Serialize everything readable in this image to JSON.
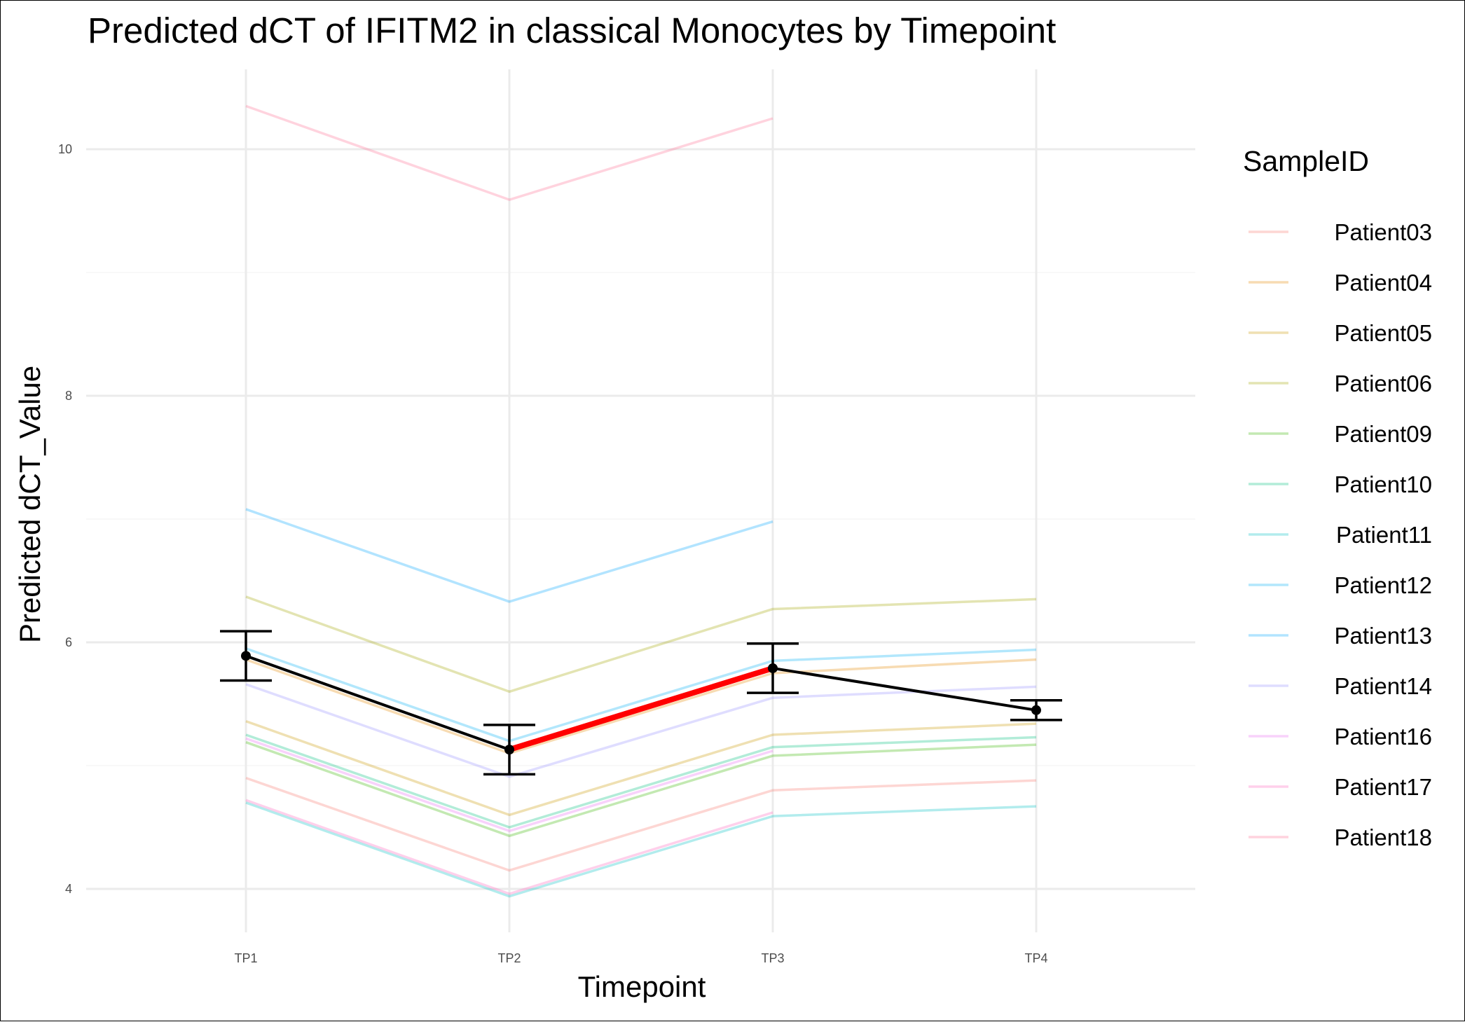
{
  "chart_data": {
    "type": "line",
    "title": "Predicted dCT of  IFITM2 in  classical  Monocytes by Timepoint",
    "xlabel": "Timepoint",
    "ylabel": "Predicted dCT_Value",
    "categories": [
      "TP1",
      "TP2",
      "TP3",
      "TP4"
    ],
    "ylim": [
      3.65,
      10.65
    ],
    "yticks": [
      4,
      6,
      8,
      10
    ],
    "grid": true,
    "legend_title": "SampleID",
    "legend_position": "right",
    "series": [
      {
        "name": "Patient03",
        "color": "#F8766D",
        "values": [
          4.9,
          4.15,
          4.8,
          4.88
        ]
      },
      {
        "name": "Patient04",
        "color": "#E58700",
        "values": [
          5.86,
          5.1,
          5.75,
          5.86
        ]
      },
      {
        "name": "Patient05",
        "color": "#C99800",
        "values": [
          5.36,
          4.6,
          5.25,
          5.34
        ]
      },
      {
        "name": "Patient06",
        "color": "#A3A500",
        "values": [
          6.37,
          5.6,
          6.27,
          6.35
        ]
      },
      {
        "name": "Patient09",
        "color": "#39B600",
        "values": [
          5.19,
          4.43,
          5.08,
          5.17
        ]
      },
      {
        "name": "Patient10",
        "color": "#00BF7D",
        "values": [
          5.25,
          4.5,
          5.15,
          5.23
        ]
      },
      {
        "name": "Patient11",
        "color": "#00BFC4",
        "values": [
          4.7,
          3.94,
          4.59,
          4.67
        ]
      },
      {
        "name": "Patient12",
        "color": "#00B0F6",
        "values": [
          5.95,
          5.2,
          5.85,
          5.94
        ]
      },
      {
        "name": "Patient13",
        "color": "#00A5FF",
        "values": [
          7.08,
          6.33,
          6.98,
          null
        ]
      },
      {
        "name": "Patient14",
        "color": "#9590FF",
        "values": [
          5.66,
          4.91,
          5.55,
          5.64
        ]
      },
      {
        "name": "Patient16",
        "color": "#E76BF3",
        "values": [
          5.22,
          4.47,
          5.12,
          null
        ]
      },
      {
        "name": "Patient17",
        "color": "#FF62BC",
        "values": [
          4.72,
          3.96,
          4.62,
          null
        ]
      },
      {
        "name": "Patient18",
        "color": "#FF6C91",
        "values": [
          10.35,
          9.59,
          10.25,
          null
        ]
      }
    ],
    "mean": {
      "values": [
        5.89,
        5.13,
        5.79,
        5.45
      ],
      "ci_low": [
        5.69,
        4.93,
        5.59,
        5.37
      ],
      "ci_high": [
        6.09,
        5.33,
        5.99,
        5.53
      ],
      "color": "#000000",
      "highlight_segment": [
        "TP2",
        "TP3"
      ],
      "highlight_color": "#FF0000"
    }
  }
}
